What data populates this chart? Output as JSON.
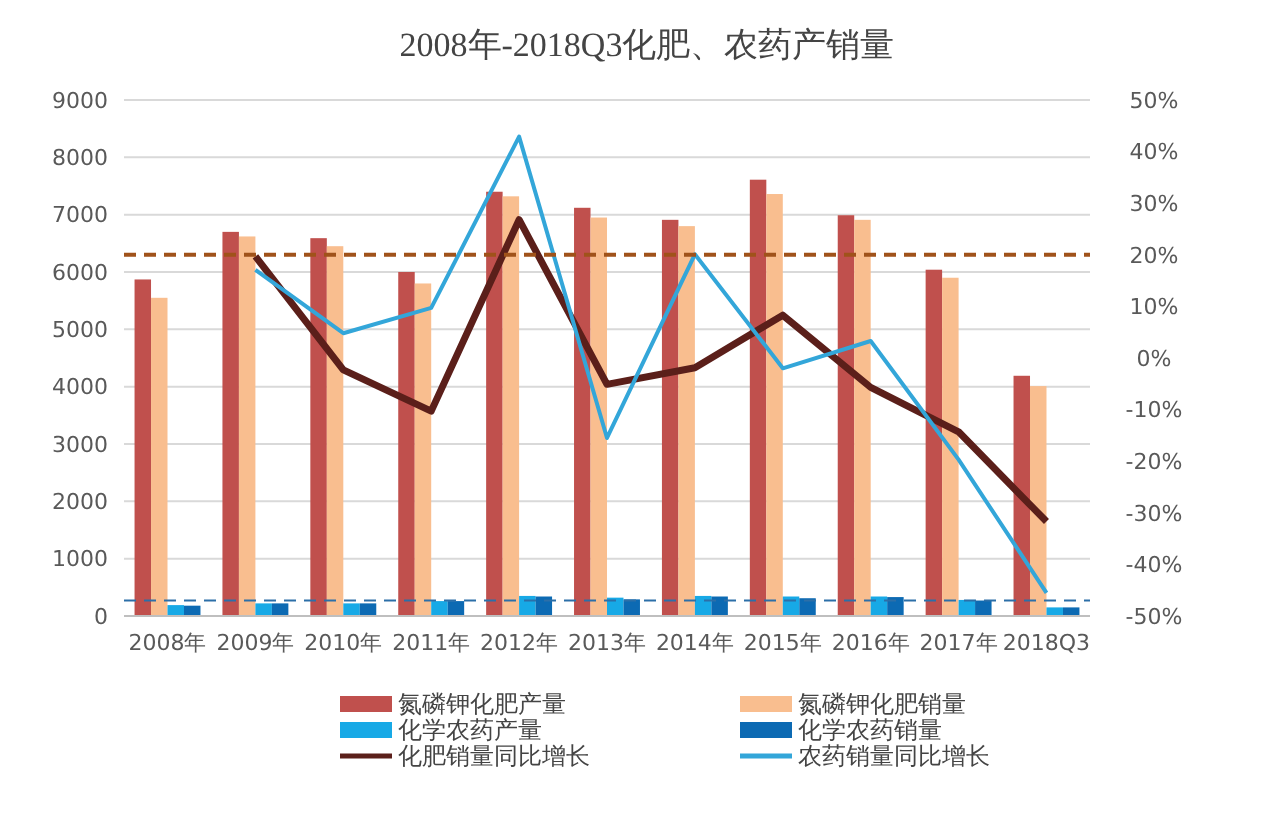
{
  "chart_data": {
    "type": "bar",
    "title": "2008年-2018Q3化肥、农药产销量",
    "categories": [
      "2008年",
      "2009年",
      "2010年",
      "2011年",
      "2012年",
      "2013年",
      "2014年",
      "2015年",
      "2016年",
      "2017年",
      "2018Q3"
    ],
    "series": [
      {
        "name": "氮磷钾化肥产量",
        "color": "#c0504d",
        "values": [
          5870,
          6700,
          6590,
          6000,
          7400,
          7120,
          6910,
          7610,
          6990,
          6040,
          4190
        ]
      },
      {
        "name": "氮磷钾化肥销量",
        "color": "#f9be8f",
        "values": [
          5550,
          6620,
          6450,
          5800,
          7320,
          6950,
          6800,
          7360,
          6910,
          5900,
          4010
        ]
      },
      {
        "name": "化学农药产量",
        "color": "#17a9e6",
        "values": [
          190,
          220,
          220,
          260,
          350,
          320,
          350,
          340,
          340,
          280,
          150
        ]
      },
      {
        "name": "化学农药销量",
        "color": "#0c6ab3",
        "values": [
          180,
          220,
          220,
          260,
          340,
          290,
          340,
          310,
          330,
          270,
          150
        ]
      },
      {
        "name": "化肥销量同比增长",
        "type": "line",
        "axis": "y2",
        "color": "#5b1f1a",
        "values": [
          null,
          19.7,
          -2.3,
          -10.3,
          26.8,
          -5.1,
          -1.9,
          8.3,
          -5.7,
          -14.3,
          -31.7
        ]
      },
      {
        "name": "农药销量同比增长",
        "type": "line",
        "axis": "y2",
        "color": "#33a6d9",
        "values": [
          null,
          17.1,
          4.8,
          9.7,
          42.9,
          -15.5,
          20.1,
          -2.0,
          3.3,
          -19.7,
          -45.5
        ]
      }
    ],
    "ylim": [
      0,
      9000
    ],
    "yticks": [
      0,
      1000,
      2000,
      3000,
      4000,
      5000,
      6000,
      7000,
      8000,
      9000
    ],
    "y2lim": [
      -50,
      50
    ],
    "y2ticks": [
      {
        "value": -50,
        "label": "-50%"
      },
      {
        "value": -40,
        "label": "-40%"
      },
      {
        "value": -30,
        "label": "-30%"
      },
      {
        "value": -20,
        "label": "-20%"
      },
      {
        "value": -10,
        "label": "-10%"
      },
      {
        "value": 0,
        "label": "0%"
      },
      {
        "value": 10,
        "label": "10%"
      },
      {
        "value": 20,
        "label": "20%"
      },
      {
        "value": 30,
        "label": "30%"
      },
      {
        "value": 40,
        "label": "40%"
      },
      {
        "value": 50,
        "label": "50%"
      }
    ],
    "ref_lines": [
      {
        "axis": "y",
        "value": 6300,
        "color": "#a0521a",
        "line_style": "dashed"
      },
      {
        "axis": "y",
        "value": 270,
        "color": "#2c6fa8",
        "line_style": "dashed"
      }
    ],
    "grid": "y",
    "legend": "bottom",
    "marker": "none",
    "line_style": "solid"
  }
}
